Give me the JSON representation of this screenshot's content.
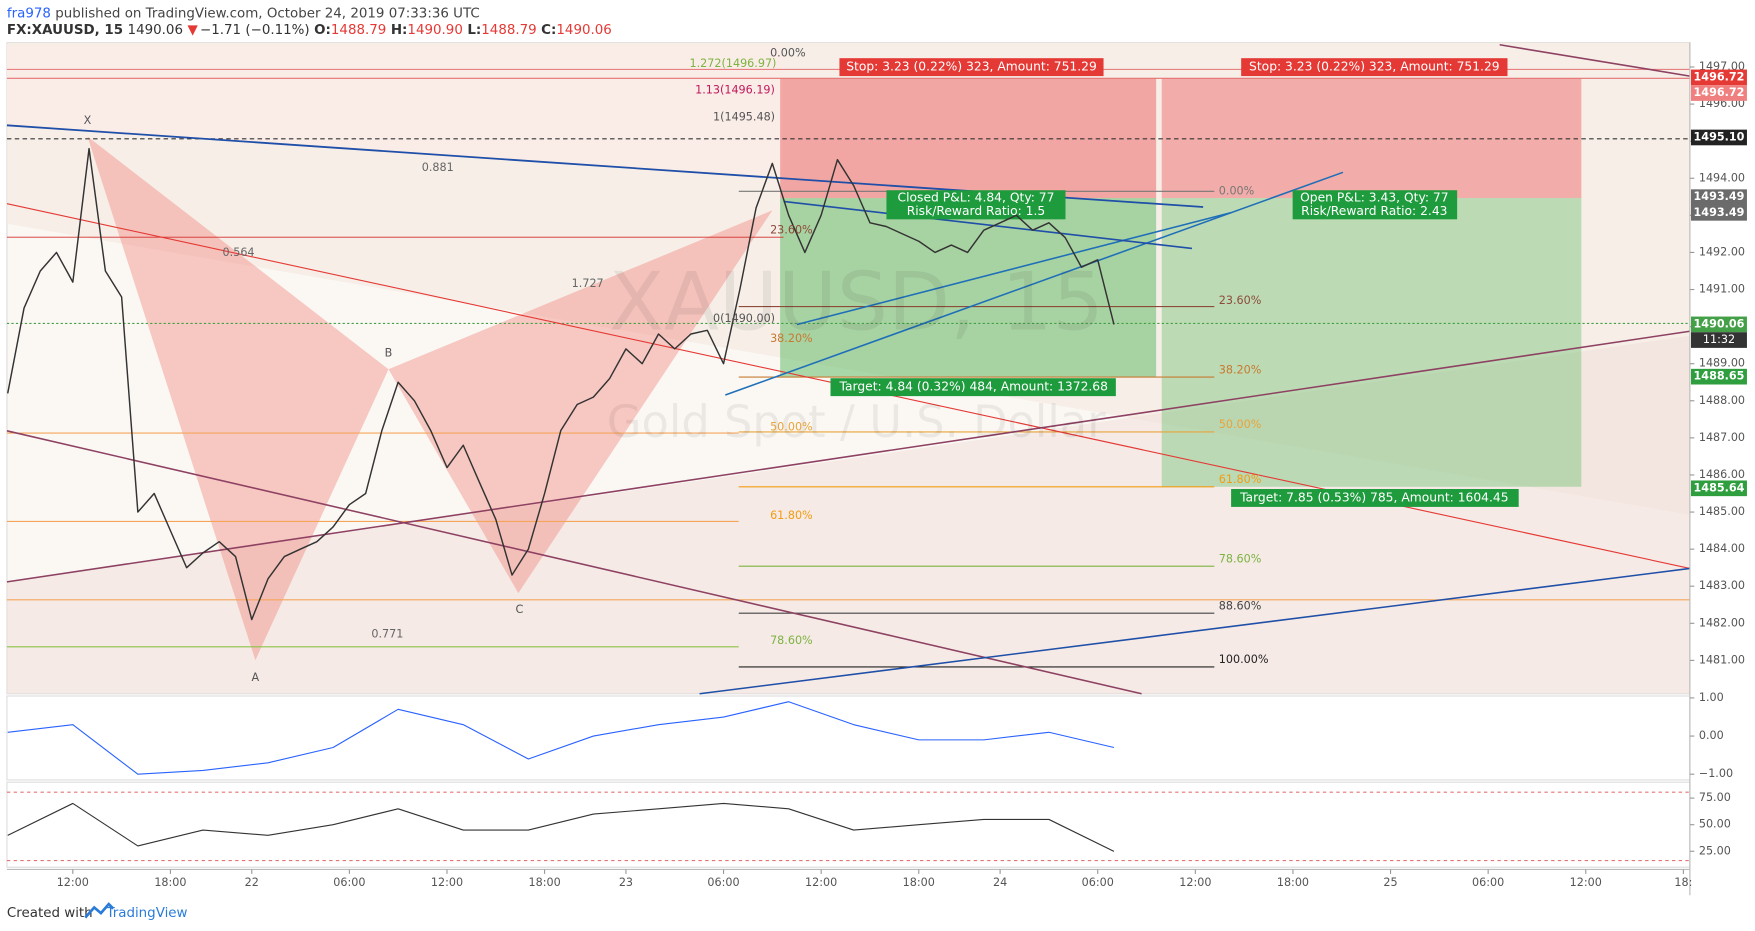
{
  "header": {
    "author": "fra978",
    "published": " published on TradingView.com, October 24, 2019 07:33:36 UTC",
    "symbol": "FX:XAUUSD, 15",
    "last": "1490.06",
    "arrow": "▼",
    "change": "−1.71 (−0.11%)",
    "ohlc": [
      [
        "O:",
        "1488.79"
      ],
      [
        "H:",
        "1490.90"
      ],
      [
        "L:",
        "1488.79"
      ],
      [
        "C:",
        "1490.06"
      ]
    ]
  },
  "chart_data": {
    "type": "line",
    "watermark": [
      "XAUUSD, 15",
      "Gold Spot / U.S. Dollar"
    ],
    "x": [
      -4,
      -3,
      -2,
      -1,
      0,
      1,
      2,
      3,
      4,
      5,
      6,
      7,
      8,
      9,
      10,
      11,
      12,
      13,
      14,
      15,
      16,
      17,
      18,
      19,
      20,
      21,
      22,
      23,
      24,
      25,
      26,
      27,
      28,
      29,
      30,
      31,
      32,
      33,
      34,
      35,
      36,
      37,
      38,
      39,
      40,
      41,
      42,
      43,
      44,
      45,
      46,
      47,
      48,
      49,
      50,
      51,
      52,
      53,
      54,
      55,
      56,
      57,
      58,
      59,
      60,
      61,
      62,
      63,
      64
    ],
    "series": [
      {
        "color": "#333333",
        "values": [
          1488.2,
          1490.5,
          1491.5,
          1492.0,
          1491.2,
          1494.8,
          1491.5,
          1490.8,
          1485.0,
          1485.5,
          1484.5,
          1483.5,
          1483.9,
          1484.2,
          1483.8,
          1482.1,
          1483.2,
          1483.8,
          1484.0,
          1484.2,
          1484.6,
          1485.2,
          1485.5,
          1487.2,
          1488.5,
          1488.0,
          1487.2,
          1486.2,
          1486.8,
          1485.8,
          1484.8,
          1483.3,
          1484.0,
          1485.5,
          1487.2,
          1487.9,
          1488.1,
          1488.6,
          1489.4,
          1489.0,
          1489.8,
          1489.4,
          1489.8,
          1489.9,
          1489.0,
          1491.0,
          1493.2,
          1494.4,
          1493.0,
          1492.0,
          1493.0,
          1494.5,
          1493.8,
          1492.8,
          1492.7,
          1492.5,
          1492.3,
          1492.0,
          1492.2,
          1492.0,
          1492.6,
          1492.8,
          1493.0,
          1492.6,
          1492.8,
          1492.4,
          1491.6,
          1491.8,
          1490.06
        ]
      }
    ],
    "xlim": [
      -4.05,
      99.4
    ],
    "ylim": [
      1480.1,
      1497.66
    ],
    "xticks": [
      {
        "value": 0,
        "label": "12:00"
      },
      {
        "value": 6,
        "label": "18:00"
      },
      {
        "value": 11,
        "label": "22"
      },
      {
        "value": 17,
        "label": "06:00"
      },
      {
        "value": 23,
        "label": "12:00"
      },
      {
        "value": 29,
        "label": "18:00"
      },
      {
        "value": 34,
        "label": "23"
      },
      {
        "value": 40,
        "label": "06:00"
      },
      {
        "value": 46,
        "label": "12:00"
      },
      {
        "value": 52,
        "label": "18:00"
      },
      {
        "value": 57,
        "label": "24"
      },
      {
        "value": 63,
        "label": "06:00"
      },
      {
        "value": 69,
        "label": "12:00"
      },
      {
        "value": 75,
        "label": "18:00"
      },
      {
        "value": 81,
        "label": "25"
      },
      {
        "value": 87,
        "label": "06:00"
      },
      {
        "value": 93,
        "label": "12:00"
      },
      {
        "value": 99,
        "label": "18:"
      }
    ],
    "yticks": [
      {
        "value": 1481,
        "label": "1481.00"
      },
      {
        "value": 1482,
        "label": "1482.00"
      },
      {
        "value": 1483,
        "label": "1483.00"
      },
      {
        "value": 1484,
        "label": "1484.00"
      },
      {
        "value": 1485,
        "label": "1485.00"
      },
      {
        "value": 1486,
        "label": "1486.00"
      },
      {
        "value": 1487,
        "label": "1487.00"
      },
      {
        "value": 1488,
        "label": "1488.00"
      },
      {
        "value": 1489,
        "label": "1489.00"
      },
      {
        "value": 1490,
        "label": "1490.00"
      },
      {
        "value": 1491,
        "label": "1491.00"
      },
      {
        "value": 1492,
        "label": "1492.00"
      },
      {
        "value": 1493,
        "label": "1493.00"
      },
      {
        "value": 1494,
        "label": "1494.00"
      },
      {
        "value": 1495,
        "label": "1495.00"
      },
      {
        "value": 1496,
        "label": "1496.00"
      },
      {
        "value": 1497,
        "label": "1497.00"
      }
    ],
    "price_marks": {
      "values": [
        1496.72,
        1496.72,
        1495.1,
        1493.49,
        1493.49,
        1490.06,
        1488.65,
        1485.64
      ],
      "value_labels": [
        "1496.72",
        "1496.72",
        "1495.10",
        "1493.49",
        "1493.49",
        "1490.06",
        "1488.65",
        "1485.64"
      ],
      "colors": [
        "#e53935",
        "#f08080",
        "#222222",
        "#6b6b6b",
        "#6b6b6b",
        "#43a047",
        "#2e9e3e",
        "#2e9e3e"
      ]
    },
    "countdown": "11:32",
    "pattern_points": [
      "X",
      "A",
      "B",
      "C"
    ],
    "pattern_ratios": [
      "0.881",
      "0.564",
      "1.727",
      "0.771"
    ],
    "fib_extension": [
      "1.272(1496.97)",
      "1.13(1496.19)",
      "1(1495.48)",
      "0(1490.00)"
    ],
    "fib_left": [
      "0.00%",
      "23.60%",
      "38.20%",
      "50.00%",
      "61.80%",
      "78.60%"
    ],
    "fib_right": [
      "0.00%",
      "23.60%",
      "38.20%",
      "50.00%",
      "61.80%",
      "78.60%",
      "88.60%",
      "100.00%"
    ],
    "positions": [
      {
        "stop": "Stop: 3.23 (0.22%) 323, Amount: 751.29",
        "info": [
          "Closed P&L: 4.84, Qty: 77",
          "Risk/Reward Ratio: 1.5"
        ],
        "target": "Target: 4.84 (0.32%) 484, Amount: 1372.68"
      },
      {
        "stop": "Stop: 3.23 (0.22%) 323, Amount: 751.29",
        "info": [
          "Open P&L: 3.43, Qty: 77",
          "Risk/Reward Ratio: 2.43"
        ],
        "target": "Target: 7.85 (0.53%) 785, Amount: 1604.45"
      }
    ],
    "macd": {
      "x": [
        -4,
        0,
        4,
        8,
        12,
        16,
        20,
        24,
        28,
        32,
        36,
        40,
        44,
        48,
        52,
        56,
        60,
        64
      ],
      "values": [
        0.1,
        0.3,
        -1.0,
        -0.9,
        -0.7,
        -0.3,
        0.7,
        0.3,
        -0.6,
        0.0,
        0.3,
        0.5,
        0.9,
        0.3,
        -0.1,
        -0.1,
        0.1,
        -0.3
      ],
      "color": "#2962ff",
      "ylim": [
        -1.15,
        1.05
      ],
      "yticks": [
        {
          "value": 1,
          "label": "1.00"
        },
        {
          "value": 0,
          "label": "0.00"
        },
        {
          "value": -1,
          "label": "−1.00"
        }
      ]
    },
    "rsi": {
      "x": [
        -4,
        0,
        4,
        8,
        12,
        16,
        20,
        24,
        28,
        32,
        36,
        40,
        44,
        48,
        52,
        56,
        60,
        64
      ],
      "values": [
        40,
        70,
        30,
        45,
        40,
        50,
        65,
        45,
        45,
        60,
        65,
        70,
        65,
        45,
        50,
        55,
        55,
        25
      ],
      "color": "#333333",
      "ylim": [
        10,
        90
      ],
      "yticks": [
        {
          "value": 75,
          "label": "75.00"
        },
        {
          "value": 50,
          "label": "50.00"
        },
        {
          "value": 25,
          "label": "25.00"
        }
      ]
    }
  },
  "footer": {
    "created": "Created with",
    "brand": "TradingView"
  }
}
